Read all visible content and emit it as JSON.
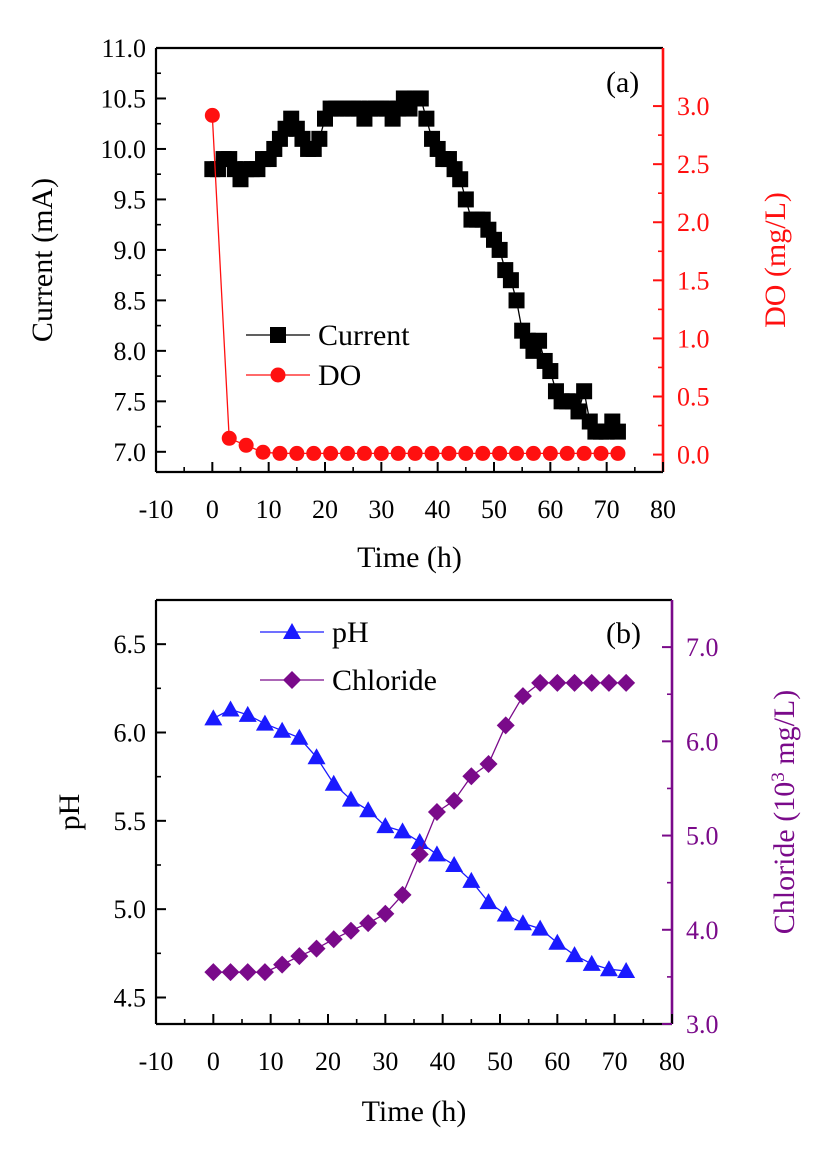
{
  "chart_data": [
    {
      "type": "scatter",
      "panel_label": "(a)",
      "xlabel": "Time (h)",
      "xlim": [
        -10,
        80
      ],
      "xticks": [
        -10,
        0,
        10,
        20,
        30,
        40,
        50,
        60,
        70,
        80
      ],
      "ylabel_left": "Current (mA)",
      "ylim_left": [
        6.8,
        11.0
      ],
      "yticks_left": [
        "7.0",
        "7.5",
        "8.0",
        "8.5",
        "9.0",
        "9.5",
        "10.0",
        "10.5",
        "11.0"
      ],
      "ylabel_right": "DO (mg/L)",
      "ylim_right": [
        -0.15,
        3.5
      ],
      "yticks_right": [
        "0.0",
        "0.5",
        "1.0",
        "1.5",
        "2.0",
        "2.5",
        "3.0"
      ],
      "legend_position": "center-left",
      "grid": false,
      "series": [
        {
          "name": "Current",
          "axis": "left",
          "color": "#000000",
          "marker": "square",
          "x": [
            0,
            1,
            2,
            3,
            4,
            5,
            6,
            7,
            8,
            9,
            10,
            11,
            12,
            13,
            14,
            15,
            16,
            17,
            18,
            19,
            20,
            21,
            22,
            23,
            24,
            25,
            26,
            27,
            28,
            29,
            30,
            31,
            32,
            33,
            34,
            35,
            36,
            37,
            38,
            39,
            40,
            41,
            42,
            43,
            44,
            45,
            46,
            47,
            48,
            49,
            50,
            51,
            52,
            53,
            54,
            55,
            56,
            57,
            58,
            59,
            60,
            61,
            62,
            63,
            64,
            65,
            66,
            67,
            68,
            69,
            70,
            71,
            72
          ],
          "y": [
            9.8,
            9.8,
            9.9,
            9.9,
            9.8,
            9.7,
            9.8,
            9.8,
            9.8,
            9.9,
            9.9,
            10.0,
            10.1,
            10.2,
            10.3,
            10.2,
            10.1,
            10.0,
            10.0,
            10.1,
            10.3,
            10.4,
            10.4,
            10.4,
            10.4,
            10.4,
            10.4,
            10.3,
            10.4,
            10.4,
            10.4,
            10.4,
            10.3,
            10.4,
            10.5,
            10.4,
            10.5,
            10.5,
            10.3,
            10.1,
            10.0,
            9.9,
            9.9,
            9.8,
            9.7,
            9.5,
            9.3,
            9.3,
            9.3,
            9.2,
            9.1,
            9.0,
            8.8,
            8.7,
            8.5,
            8.2,
            8.1,
            8.0,
            8.1,
            7.9,
            7.8,
            7.6,
            7.5,
            7.5,
            7.5,
            7.4,
            7.6,
            7.3,
            7.2,
            7.2,
            7.2,
            7.3,
            7.2
          ]
        },
        {
          "name": "DO",
          "axis": "right",
          "color": "#ff1010",
          "marker": "circle",
          "x": [
            0,
            3,
            6,
            9,
            12,
            15,
            18,
            21,
            24,
            27,
            30,
            33,
            36,
            39,
            42,
            45,
            48,
            51,
            54,
            57,
            60,
            63,
            66,
            69,
            72
          ],
          "y": [
            2.92,
            0.14,
            0.08,
            0.02,
            0.01,
            0.01,
            0.01,
            0.01,
            0.01,
            0.01,
            0.01,
            0.01,
            0.01,
            0.01,
            0.01,
            0.01,
            0.01,
            0.01,
            0.01,
            0.01,
            0.01,
            0.01,
            0.01,
            0.01,
            0.01
          ]
        }
      ]
    },
    {
      "type": "line",
      "panel_label": "(b)",
      "xlabel": "Time (h)",
      "xlim": [
        -10,
        80
      ],
      "xticks": [
        -10,
        0,
        10,
        20,
        30,
        40,
        50,
        60,
        70,
        80
      ],
      "ylabel_left": "pH",
      "ylim_left": [
        4.35,
        6.75
      ],
      "yticks_left": [
        "4.5",
        "5.0",
        "5.5",
        "6.0",
        "6.5"
      ],
      "ylabel_right_prefix": "Chloride (10",
      "ylabel_right_sup": "3",
      "ylabel_right_suffix": " mg/L)",
      "ylim_right": [
        3.0,
        7.5
      ],
      "yticks_right": [
        "3.0",
        "4.0",
        "5.0",
        "6.0",
        "7.0"
      ],
      "legend_position": "top-center",
      "grid": false,
      "series": [
        {
          "name": "pH",
          "axis": "left",
          "color": "#1a1aff",
          "marker": "triangle",
          "x": [
            0,
            3,
            6,
            9,
            12,
            15,
            18,
            21,
            24,
            27,
            30,
            33,
            36,
            39,
            42,
            45,
            48,
            51,
            54,
            57,
            60,
            63,
            66,
            69,
            72
          ],
          "y": [
            6.08,
            6.13,
            6.1,
            6.05,
            6.01,
            5.97,
            5.86,
            5.71,
            5.62,
            5.56,
            5.47,
            5.44,
            5.38,
            5.31,
            5.25,
            5.16,
            5.04,
            4.97,
            4.92,
            4.89,
            4.81,
            4.74,
            4.69,
            4.66,
            4.65
          ]
        },
        {
          "name": "Chloride",
          "axis": "right",
          "color": "#7a0a8a",
          "marker": "diamond",
          "x": [
            0,
            3,
            6,
            9,
            12,
            15,
            18,
            21,
            24,
            27,
            30,
            33,
            36,
            39,
            42,
            45,
            48,
            51,
            54,
            57,
            60,
            63,
            66,
            69,
            72
          ],
          "y": [
            3.55,
            3.55,
            3.55,
            3.55,
            3.63,
            3.72,
            3.8,
            3.9,
            3.99,
            4.07,
            4.17,
            4.37,
            4.8,
            5.25,
            5.37,
            5.63,
            5.76,
            6.17,
            6.48,
            6.62,
            6.62,
            6.62,
            6.62,
            6.62,
            6.62
          ]
        }
      ]
    }
  ]
}
